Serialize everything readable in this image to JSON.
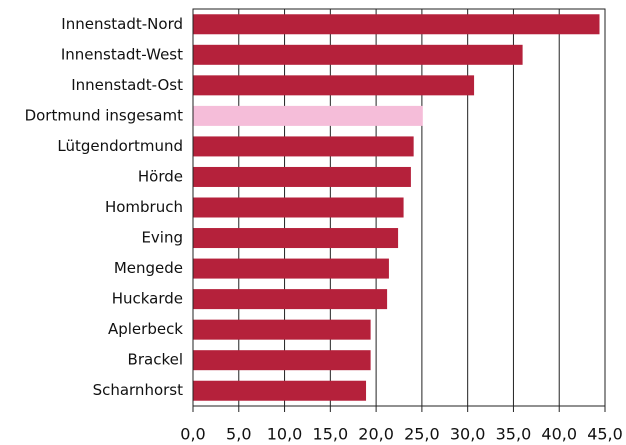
{
  "chart_data": {
    "type": "barh",
    "categories": [
      "Innenstadt-Nord",
      "Innenstadt-West",
      "Innenstadt-Ost",
      "Dortmund insgesamt",
      "Lütgendortmund",
      "Hörde",
      "Hombruch",
      "Eving",
      "Mengede",
      "Huckarde",
      "Aplerbeck",
      "Brackel",
      "Scharnhorst"
    ],
    "values": [
      44.4,
      36.0,
      30.7,
      25.1,
      24.1,
      23.8,
      23.0,
      22.4,
      21.4,
      21.2,
      19.4,
      19.4,
      18.9
    ],
    "colors": [
      "#b5213b",
      "#b5213b",
      "#b5213b",
      "#f5bdd9",
      "#b5213b",
      "#b5213b",
      "#b5213b",
      "#b5213b",
      "#b5213b",
      "#b5213b",
      "#b5213b",
      "#b5213b",
      "#b5213b"
    ],
    "xlim": [
      0,
      45
    ],
    "xticks": [
      {
        "value": 0,
        "label": "0,0"
      },
      {
        "value": 5,
        "label": "5,0"
      },
      {
        "value": 10,
        "label": "10,0"
      },
      {
        "value": 15,
        "label": "15,0"
      },
      {
        "value": 20,
        "label": "20,0"
      },
      {
        "value": 25,
        "label": "25,0"
      },
      {
        "value": 30,
        "label": "30,0"
      },
      {
        "value": 35,
        "label": "35,0"
      },
      {
        "value": 40,
        "label": "40,0"
      },
      {
        "value": 45,
        "label": "45,0"
      }
    ],
    "grid": true
  }
}
